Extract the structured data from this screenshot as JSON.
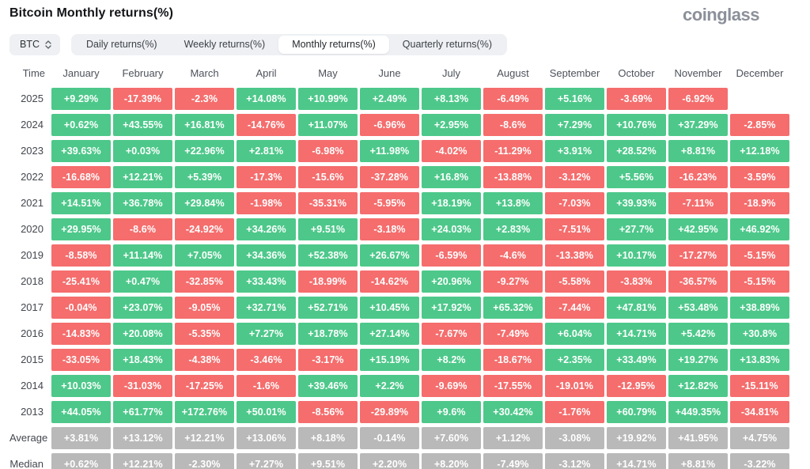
{
  "header": {
    "title": "Bitcoin Monthly returns(%)",
    "logo": "coinglass"
  },
  "controls": {
    "symbol_selector": {
      "label": "BTC",
      "icon": "sort-arrows-icon"
    },
    "tabs": [
      {
        "label": "Daily returns(%)",
        "selected": false
      },
      {
        "label": "Weekly returns(%)",
        "selected": false
      },
      {
        "label": "Monthly returns(%)",
        "selected": true
      },
      {
        "label": "Quarterly returns(%)",
        "selected": false
      }
    ]
  },
  "colors": {
    "positive": "#4dc88a",
    "negative": "#f56d6d",
    "neutral": "#b9b9b9"
  },
  "chart_data": {
    "type": "heatmap",
    "title": "Bitcoin Monthly returns(%)",
    "columns": [
      "Time",
      "January",
      "February",
      "March",
      "April",
      "May",
      "June",
      "July",
      "August",
      "September",
      "October",
      "November",
      "December"
    ],
    "color_rule": "cells green if value starts with +, red if -, gray for Average/Median rows, blank if null",
    "rows": [
      {
        "label": "2025",
        "neutral": false,
        "values": [
          "+9.29%",
          "-17.39%",
          "-2.3%",
          "+14.08%",
          "+10.99%",
          "+2.49%",
          "+8.13%",
          "-6.49%",
          "+5.16%",
          "-3.69%",
          "-6.92%",
          null
        ]
      },
      {
        "label": "2024",
        "neutral": false,
        "values": [
          "+0.62%",
          "+43.55%",
          "+16.81%",
          "-14.76%",
          "+11.07%",
          "-6.96%",
          "+2.95%",
          "-8.6%",
          "+7.29%",
          "+10.76%",
          "+37.29%",
          "-2.85%"
        ]
      },
      {
        "label": "2023",
        "neutral": false,
        "values": [
          "+39.63%",
          "+0.03%",
          "+22.96%",
          "+2.81%",
          "-6.98%",
          "+11.98%",
          "-4.02%",
          "-11.29%",
          "+3.91%",
          "+28.52%",
          "+8.81%",
          "+12.18%"
        ]
      },
      {
        "label": "2022",
        "neutral": false,
        "values": [
          "-16.68%",
          "+12.21%",
          "+5.39%",
          "-17.3%",
          "-15.6%",
          "-37.28%",
          "+16.8%",
          "-13.88%",
          "-3.12%",
          "+5.56%",
          "-16.23%",
          "-3.59%"
        ]
      },
      {
        "label": "2021",
        "neutral": false,
        "values": [
          "+14.51%",
          "+36.78%",
          "+29.84%",
          "-1.98%",
          "-35.31%",
          "-5.95%",
          "+18.19%",
          "+13.8%",
          "-7.03%",
          "+39.93%",
          "-7.11%",
          "-18.9%"
        ]
      },
      {
        "label": "2020",
        "neutral": false,
        "values": [
          "+29.95%",
          "-8.6%",
          "-24.92%",
          "+34.26%",
          "+9.51%",
          "-3.18%",
          "+24.03%",
          "+2.83%",
          "-7.51%",
          "+27.7%",
          "+42.95%",
          "+46.92%"
        ]
      },
      {
        "label": "2019",
        "neutral": false,
        "values": [
          "-8.58%",
          "+11.14%",
          "+7.05%",
          "+34.36%",
          "+52.38%",
          "+26.67%",
          "-6.59%",
          "-4.6%",
          "-13.38%",
          "+10.17%",
          "-17.27%",
          "-5.15%"
        ]
      },
      {
        "label": "2018",
        "neutral": false,
        "values": [
          "-25.41%",
          "+0.47%",
          "-32.85%",
          "+33.43%",
          "-18.99%",
          "-14.62%",
          "+20.96%",
          "-9.27%",
          "-5.58%",
          "-3.83%",
          "-36.57%",
          "-5.15%"
        ]
      },
      {
        "label": "2017",
        "neutral": false,
        "values": [
          "-0.04%",
          "+23.07%",
          "-9.05%",
          "+32.71%",
          "+52.71%",
          "+10.45%",
          "+17.92%",
          "+65.32%",
          "-7.44%",
          "+47.81%",
          "+53.48%",
          "+38.89%"
        ]
      },
      {
        "label": "2016",
        "neutral": false,
        "values": [
          "-14.83%",
          "+20.08%",
          "-5.35%",
          "+7.27%",
          "+18.78%",
          "+27.14%",
          "-7.67%",
          "-7.49%",
          "+6.04%",
          "+14.71%",
          "+5.42%",
          "+30.8%"
        ]
      },
      {
        "label": "2015",
        "neutral": false,
        "values": [
          "-33.05%",
          "+18.43%",
          "-4.38%",
          "-3.46%",
          "-3.17%",
          "+15.19%",
          "+8.2%",
          "-18.67%",
          "+2.35%",
          "+33.49%",
          "+19.27%",
          "+13.83%"
        ]
      },
      {
        "label": "2014",
        "neutral": false,
        "values": [
          "+10.03%",
          "-31.03%",
          "-17.25%",
          "-1.6%",
          "+39.46%",
          "+2.2%",
          "-9.69%",
          "-17.55%",
          "-19.01%",
          "-12.95%",
          "+12.82%",
          "-15.11%"
        ]
      },
      {
        "label": "2013",
        "neutral": false,
        "values": [
          "+44.05%",
          "+61.77%",
          "+172.76%",
          "+50.01%",
          "-8.56%",
          "-29.89%",
          "+9.6%",
          "+30.42%",
          "-1.76%",
          "+60.79%",
          "+449.35%",
          "-34.81%"
        ]
      },
      {
        "label": "Average",
        "neutral": true,
        "values": [
          "+3.81%",
          "+13.12%",
          "+12.21%",
          "+13.06%",
          "+8.18%",
          "-0.14%",
          "+7.60%",
          "+1.12%",
          "-3.08%",
          "+19.92%",
          "+41.95%",
          "+4.75%"
        ]
      },
      {
        "label": "Median",
        "neutral": true,
        "values": [
          "+0.62%",
          "+12.21%",
          "-2.30%",
          "+7.27%",
          "+9.51%",
          "+2.20%",
          "+8.20%",
          "-7.49%",
          "-3.12%",
          "+14.71%",
          "+8.81%",
          "-3.22%"
        ]
      }
    ]
  }
}
